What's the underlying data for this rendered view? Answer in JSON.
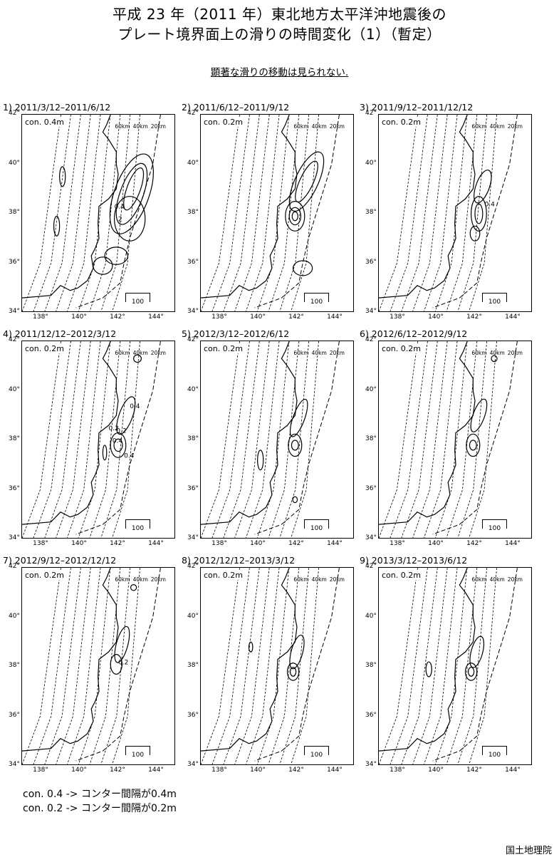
{
  "title_line1": "平成 23 年（2011 年）東北地方太平洋沖地震後の",
  "title_line2": "プレート境界面上の滑りの時間変化（1）（暫定）",
  "subtitle": "顕著な滑りの移動は見られない.",
  "depth_labels": [
    "60km",
    "40km",
    "20km"
  ],
  "scale_label": "100 km",
  "lat_ticks": [
    "42°",
    "40°",
    "38°",
    "36°",
    "34°"
  ],
  "lon_ticks": [
    "138°",
    "140°",
    "142°",
    "144°"
  ],
  "panels": [
    {
      "label": "1) 2011/3/12–2011/6/12",
      "con": "con. 0.4m",
      "contour_labels": [
        "2",
        "0.4"
      ]
    },
    {
      "label": "2) 2011/6/12–2011/9/12",
      "con": "con. 0.2m",
      "contour_labels": []
    },
    {
      "label": "3) 2011/9/12–2011/12/12",
      "con": "con. 0.2m",
      "contour_labels": [
        "0.4"
      ]
    },
    {
      "label": "4) 2011/12/12–2012/3/12",
      "con": "con. 0.2m",
      "contour_labels": [
        "0.4",
        "0.2",
        "0.4",
        "0.4",
        "0.2"
      ]
    },
    {
      "label": "5) 2012/3/12–2012/6/12",
      "con": "con. 0.2m",
      "contour_labels": []
    },
    {
      "label": "6) 2012/6/12–2012/9/12",
      "con": "con. 0.2m",
      "contour_labels": []
    },
    {
      "label": "7) 2012/9/12–2012/12/12",
      "con": "con. 0.2m",
      "contour_labels": [
        "0.2"
      ]
    },
    {
      "label": "8) 2012/12/12–2013/3/12",
      "con": "con. 0.2m",
      "contour_labels": []
    },
    {
      "label": "9) 2013/3/12–2013/6/12",
      "con": "con. 0.2m",
      "contour_labels": []
    }
  ],
  "legend": [
    "con. 0.4 -> コンター間隔が0.4m",
    "con. 0.2 -> コンター間隔が0.2m"
  ],
  "footer": "国土地理院"
}
